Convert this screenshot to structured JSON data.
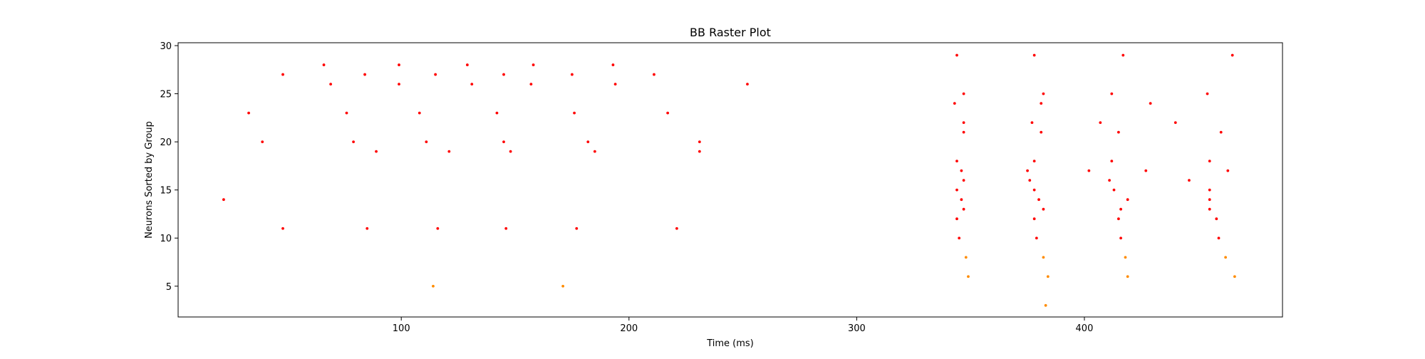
{
  "chart_data": {
    "type": "scatter",
    "title": "BB Raster Plot",
    "xlabel": "Time (ms)",
    "ylabel": "Neurons Sorted by Group",
    "xlim": [
      2,
      487
    ],
    "ylim": [
      1.8,
      30.3
    ],
    "xticks": [
      100,
      200,
      300,
      400
    ],
    "yticks": [
      5,
      10,
      15,
      20,
      25,
      30
    ],
    "grid": false,
    "legend": "none",
    "series": [
      {
        "color": "#ff0000",
        "points": [
          [
            22,
            14
          ],
          [
            33,
            23
          ],
          [
            39,
            20
          ],
          [
            48,
            27
          ],
          [
            48,
            11
          ],
          [
            66,
            28
          ],
          [
            69,
            26
          ],
          [
            76,
            23
          ],
          [
            79,
            20
          ],
          [
            84,
            27
          ],
          [
            85,
            11
          ],
          [
            89,
            19
          ],
          [
            99,
            28
          ],
          [
            99,
            26
          ],
          [
            108,
            23
          ],
          [
            111,
            20
          ],
          [
            115,
            27
          ],
          [
            116,
            11
          ],
          [
            121,
            19
          ],
          [
            129,
            28
          ],
          [
            131,
            26
          ],
          [
            142,
            23
          ],
          [
            145,
            20
          ],
          [
            145,
            27
          ],
          [
            146,
            11
          ],
          [
            148,
            19
          ],
          [
            157,
            26
          ],
          [
            158,
            28
          ],
          [
            175,
            27
          ],
          [
            176,
            23
          ],
          [
            177,
            11
          ],
          [
            182,
            20
          ],
          [
            185,
            19
          ],
          [
            193,
            28
          ],
          [
            194,
            26
          ],
          [
            211,
            27
          ],
          [
            217,
            23
          ],
          [
            221,
            11
          ],
          [
            231,
            20
          ],
          [
            231,
            19
          ],
          [
            252,
            26
          ],
          [
            343,
            24
          ],
          [
            344,
            29
          ],
          [
            344,
            18
          ],
          [
            344,
            15
          ],
          [
            344,
            12
          ],
          [
            345,
            10
          ],
          [
            346,
            17
          ],
          [
            346,
            14
          ],
          [
            347,
            25
          ],
          [
            347,
            22
          ],
          [
            347,
            21
          ],
          [
            347,
            16
          ],
          [
            347,
            13
          ],
          [
            375,
            17
          ],
          [
            376,
            16
          ],
          [
            377,
            22
          ],
          [
            378,
            29
          ],
          [
            378,
            18
          ],
          [
            378,
            15
          ],
          [
            378,
            12
          ],
          [
            379,
            10
          ],
          [
            380,
            14
          ],
          [
            381,
            24
          ],
          [
            381,
            21
          ],
          [
            382,
            25
          ],
          [
            382,
            13
          ],
          [
            402,
            17
          ],
          [
            407,
            22
          ],
          [
            411,
            16
          ],
          [
            412,
            25
          ],
          [
            412,
            18
          ],
          [
            413,
            15
          ],
          [
            415,
            12
          ],
          [
            415,
            21
          ],
          [
            416,
            10
          ],
          [
            416,
            13
          ],
          [
            417,
            29
          ],
          [
            419,
            14
          ],
          [
            429,
            24
          ],
          [
            427,
            17
          ],
          [
            440,
            22
          ],
          [
            446,
            16
          ],
          [
            454,
            25
          ],
          [
            455,
            18
          ],
          [
            455,
            15
          ],
          [
            455,
            14
          ],
          [
            455,
            13
          ],
          [
            458,
            12
          ],
          [
            459,
            10
          ],
          [
            460,
            21
          ],
          [
            463,
            17
          ],
          [
            465,
            29
          ]
        ]
      },
      {
        "color": "#ff8c00",
        "points": [
          [
            114,
            5
          ],
          [
            171,
            5
          ],
          [
            348,
            8
          ],
          [
            349,
            6
          ],
          [
            382,
            8
          ],
          [
            383,
            3
          ],
          [
            384,
            6
          ],
          [
            418,
            8
          ],
          [
            419,
            6
          ],
          [
            462,
            8
          ],
          [
            466,
            6
          ]
        ]
      }
    ]
  }
}
